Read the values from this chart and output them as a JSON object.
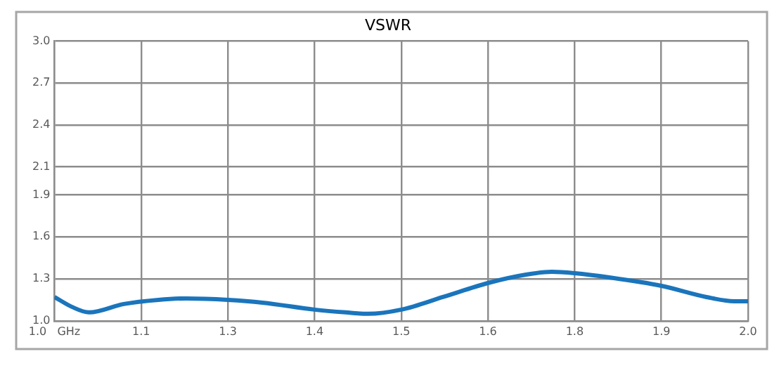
{
  "chart_data": {
    "type": "line",
    "title": "VSWR",
    "x": [
      1.0,
      1.025,
      1.05,
      1.1,
      1.15,
      1.19,
      1.25,
      1.3,
      1.375,
      1.42,
      1.452,
      1.5,
      1.56,
      1.625,
      1.68,
      1.717,
      1.75,
      1.8,
      1.875,
      1.94,
      1.98,
      2.0
    ],
    "series": [
      {
        "color": "#1a75bc",
        "values": [
          1.17,
          1.1,
          1.06,
          1.12,
          1.15,
          1.16,
          1.15,
          1.13,
          1.08,
          1.06,
          1.05,
          1.08,
          1.17,
          1.27,
          1.33,
          1.35,
          1.34,
          1.31,
          1.25,
          1.17,
          1.14,
          1.14
        ]
      }
    ],
    "xlim": [
      1.0,
      2.0
    ],
    "xticks": [
      {
        "value": 1.0,
        "label": "1.0   GHz"
      },
      {
        "value": 1.125,
        "label": "1.1"
      },
      {
        "value": 1.25,
        "label": "1.3"
      },
      {
        "value": 1.375,
        "label": "1.4"
      },
      {
        "value": 1.5,
        "label": "1.5"
      },
      {
        "value": 1.625,
        "label": "1.6"
      },
      {
        "value": 1.75,
        "label": "1.8"
      },
      {
        "value": 1.875,
        "label": "1.9"
      },
      {
        "value": 2.0,
        "label": "2.0"
      }
    ],
    "ylim": [
      1.0,
      3.0
    ],
    "yticks": [
      {
        "value": 1.0,
        "label": "1.0"
      },
      1.3,
      1.6,
      1.9,
      2.1,
      2.4,
      2.7,
      {
        "value": 3.0,
        "label": "3.0"
      }
    ],
    "grid": true,
    "marker": "none",
    "line_style": "solid"
  }
}
